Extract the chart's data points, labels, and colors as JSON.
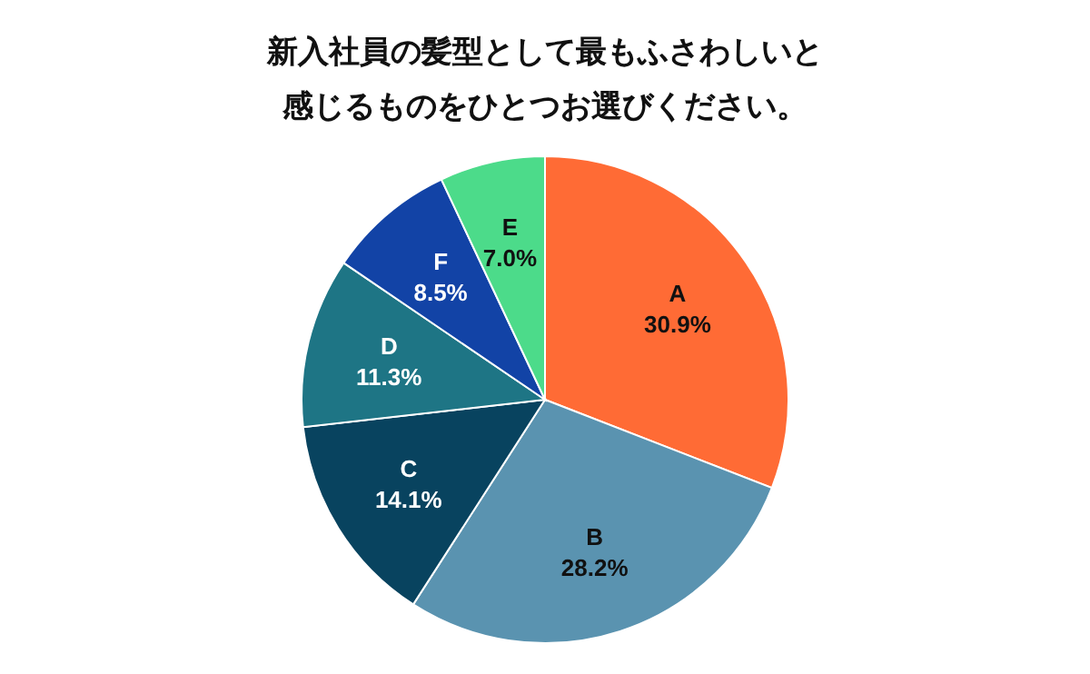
{
  "chart_data": {
    "type": "pie",
    "title": "新入社員の髪型として最もふさわしいと感じるものをひとつお選びください。",
    "categories": [
      "A",
      "B",
      "C",
      "D",
      "F",
      "E"
    ],
    "values": [
      30.9,
      28.2,
      14.1,
      11.3,
      8.5,
      7.0
    ],
    "value_labels": [
      "30.9%",
      "28.2%",
      "14.1%",
      "11.3%",
      "8.5%",
      "7.0%"
    ],
    "colors": [
      "#ff6b35",
      "#5a93b0",
      "#08435f",
      "#1e7585",
      "#1243a6",
      "#4cdb8a"
    ]
  }
}
